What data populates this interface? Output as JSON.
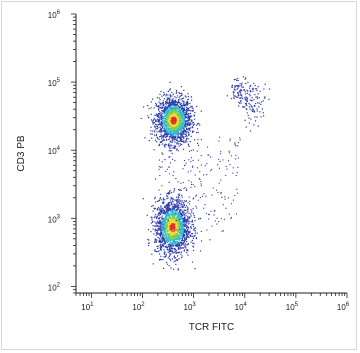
{
  "chart_data": {
    "type": "scatter",
    "title": "",
    "xlabel": "TCR FITC",
    "ylabel": "CD3 PB",
    "xscale": "log",
    "yscale": "log",
    "xlim": [
      5,
      1000000
    ],
    "ylim": [
      80,
      1000000
    ],
    "xtick_labels": [
      {
        "base": "10",
        "exp": "1"
      },
      {
        "base": "10",
        "exp": "2"
      },
      {
        "base": "10",
        "exp": "3"
      },
      {
        "base": "10",
        "exp": "4"
      },
      {
        "base": "10",
        "exp": "5"
      },
      {
        "base": "10",
        "exp": "6"
      }
    ],
    "ytick_labels": [
      {
        "base": "10",
        "exp": "2"
      },
      {
        "base": "10",
        "exp": "3"
      },
      {
        "base": "10",
        "exp": "4"
      },
      {
        "base": "10",
        "exp": "5"
      },
      {
        "base": "10",
        "exp": "6"
      }
    ],
    "grid": false,
    "legend": "none",
    "colors": {
      "low": "#2c3aa8",
      "mid_low": "#2fb7d8",
      "mid": "#7ad04a",
      "mid_high": "#f2d93a",
      "high": "#e0321e",
      "axis": "#222222"
    },
    "populations": [
      {
        "label": "",
        "x_center": 400,
        "y_center": 28000,
        "x_spread_decades": 0.17,
        "y_spread_decades": 0.17,
        "density": "high"
      },
      {
        "label": "",
        "x_center": 380,
        "y_center": 750,
        "x_spread_decades": 0.17,
        "y_spread_decades": 0.2,
        "density": "high"
      },
      {
        "label": "",
        "x_center": 8000,
        "y_center": 75000,
        "x_spread_decades": 0.1,
        "y_spread_decades": 0.1,
        "density": "low"
      },
      {
        "label": "",
        "x_center": 15000,
        "y_center": 50000,
        "x_spread_decades": 0.12,
        "y_spread_decades": 0.15,
        "density": "low"
      }
    ]
  }
}
